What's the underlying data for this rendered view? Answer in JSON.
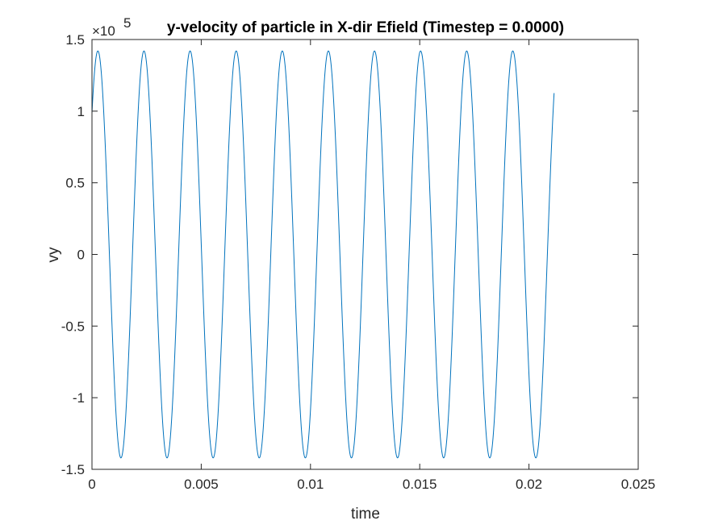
{
  "chart_data": {
    "type": "line",
    "title": "y-velocity of particle in X-dir Efield (Timestep = 0.0000)",
    "xlabel": "time",
    "ylabel": "vy",
    "y_exponent_base": "×10",
    "y_exponent_power": "5",
    "xlim": [
      0,
      0.025
    ],
    "ylim": [
      -1.5,
      1.5
    ],
    "x_ticks": [
      0,
      0.005,
      0.01,
      0.015,
      0.02,
      0.025
    ],
    "x_tick_labels": [
      "0",
      "0.005",
      "0.01",
      "0.015",
      "0.02",
      "0.025"
    ],
    "y_ticks": [
      -1.5,
      -1,
      -0.5,
      0,
      0.5,
      1,
      1.5
    ],
    "y_tick_labels": [
      "-1.5",
      "-1",
      "-0.5",
      "0",
      "0.5",
      "1",
      "1.5"
    ],
    "grid": false,
    "box": true,
    "series": [
      {
        "color": "#0072BD",
        "amplitude": 1.42,
        "period": 0.00211,
        "phase_x_at_peak": 0.00027,
        "x_start": 0,
        "x_end": 0.02115,
        "y_end": 0.96,
        "peaks_x": [
          0.00027,
          0.00238,
          0.00449,
          0.0066,
          0.00871,
          0.01082,
          0.01293,
          0.01504,
          0.01715,
          0.01926
        ],
        "troughs_x": [
          0.00133,
          0.00344,
          0.00555,
          0.00766,
          0.00977,
          0.01188,
          0.01399,
          0.0161,
          0.01821,
          0.02032
        ]
      }
    ]
  }
}
